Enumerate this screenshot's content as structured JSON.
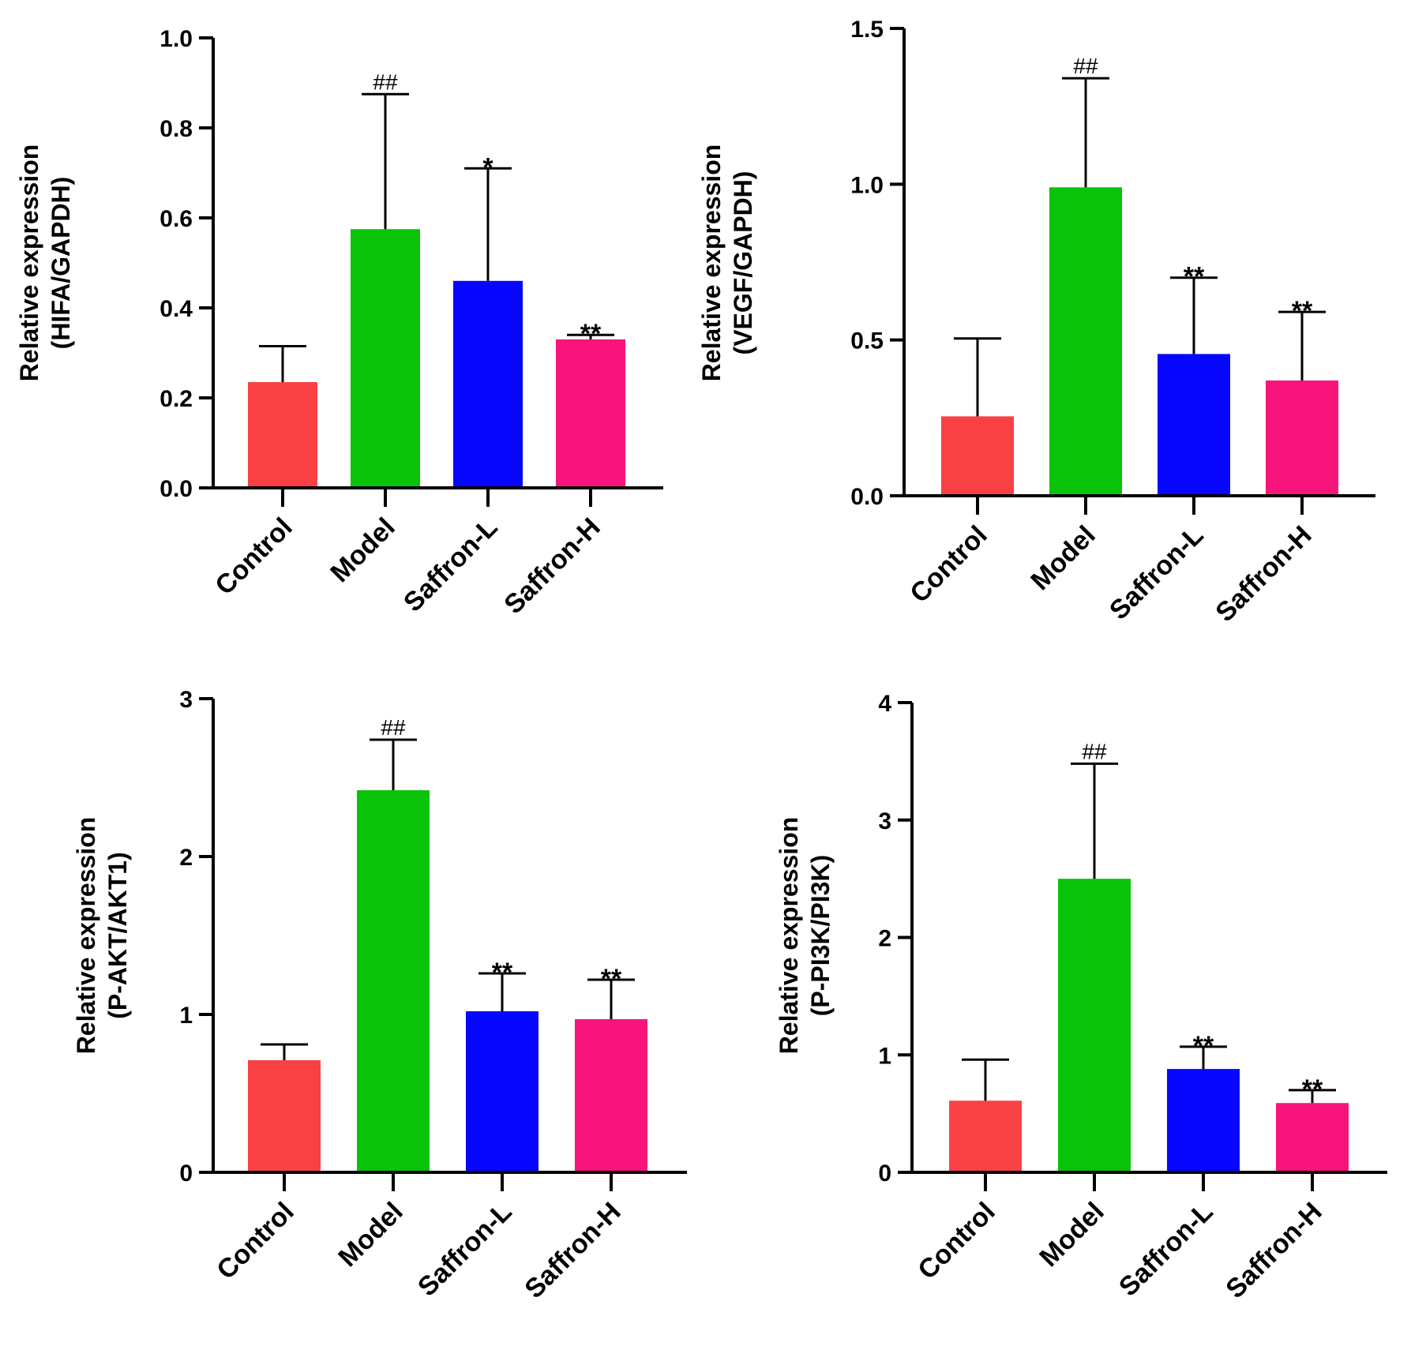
{
  "chart_data": [
    {
      "type": "bar",
      "categories": [
        "Control",
        "Model",
        "Saffron-L",
        "Saffron-H"
      ],
      "ylabel": [
        "Relative expression",
        "(HIFA/GAPDH)"
      ],
      "ylim": [
        0,
        1.0
      ],
      "yticks": [
        "0.0",
        "0.2",
        "0.4",
        "0.6",
        "0.8",
        "1.0"
      ],
      "ytick_values": [
        0,
        0.2,
        0.4,
        0.6,
        0.8,
        1.0
      ],
      "values": [
        0.235,
        0.575,
        0.46,
        0.33
      ],
      "errors": [
        0.08,
        0.3,
        0.25,
        0.01
      ],
      "annotations": [
        "",
        "##",
        "*",
        "**"
      ],
      "colors": [
        "#f94144",
        "#09c309",
        "#0707ff",
        "#f7157c"
      ]
    },
    {
      "type": "bar",
      "categories": [
        "Control",
        "Model",
        "Saffron-L",
        "Saffron-H"
      ],
      "ylabel": [
        "Relative expression",
        "(VEGF/GAPDH)"
      ],
      "ylim": [
        0,
        1.5
      ],
      "yticks": [
        "0.0",
        "0.5",
        "1.0",
        "1.5"
      ],
      "ytick_values": [
        0,
        0.5,
        1.0,
        1.5
      ],
      "values": [
        0.255,
        0.99,
        0.455,
        0.37
      ],
      "errors": [
        0.25,
        0.35,
        0.245,
        0.22
      ],
      "annotations": [
        "",
        "##",
        "**",
        "**"
      ],
      "colors": [
        "#f94144",
        "#09c309",
        "#0707ff",
        "#f7157c"
      ]
    },
    {
      "type": "bar",
      "categories": [
        "Control",
        "Model",
        "Saffron-L",
        "Saffron-H"
      ],
      "ylabel": [
        "Relative expression",
        "(P-AKT/AKT1)"
      ],
      "ylim": [
        0,
        3
      ],
      "yticks": [
        "0",
        "1",
        "2",
        "3"
      ],
      "ytick_values": [
        0,
        1,
        2,
        3
      ],
      "values": [
        0.71,
        2.42,
        1.02,
        0.97
      ],
      "errors": [
        0.1,
        0.32,
        0.24,
        0.25
      ],
      "annotations": [
        "",
        "##",
        "**",
        "**"
      ],
      "colors": [
        "#f94144",
        "#09c309",
        "#0707ff",
        "#f7157c"
      ]
    },
    {
      "type": "bar",
      "categories": [
        "Control",
        "Model",
        "Saffron-L",
        "Saffron-H"
      ],
      "ylabel": [
        "Relative expression",
        "(P-PI3K/PI3K)"
      ],
      "ylim": [
        0,
        4
      ],
      "yticks": [
        "0",
        "1",
        "2",
        "3",
        "4"
      ],
      "ytick_values": [
        0,
        1,
        2,
        3,
        4
      ],
      "values": [
        0.61,
        2.5,
        0.88,
        0.59
      ],
      "errors": [
        0.35,
        0.98,
        0.19,
        0.11
      ],
      "annotations": [
        "",
        "##",
        "**",
        "**"
      ],
      "colors": [
        "#f94144",
        "#09c309",
        "#0707ff",
        "#f7157c"
      ]
    }
  ]
}
